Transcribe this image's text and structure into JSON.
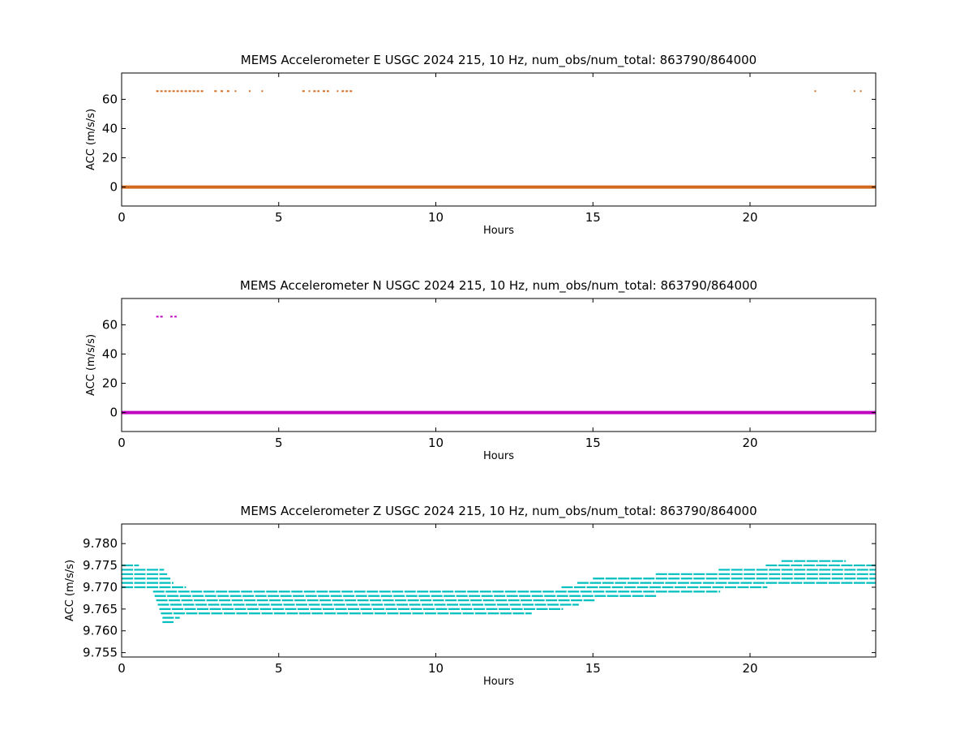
{
  "chart_data": [
    {
      "type": "scatter",
      "title": "MEMS Accelerometer E USGC 2024 215, 10 Hz, num_obs/num_total: 863790/864000",
      "xlabel": "Hours",
      "ylabel": "ACC (m/s/s)",
      "xlim": [
        0,
        24
      ],
      "ylim": [
        -13,
        78
      ],
      "xticks": [
        0,
        5,
        10,
        15,
        20
      ],
      "yticks": [
        0,
        20,
        40,
        60
      ],
      "grid": false,
      "color": "#d2691e",
      "series": [
        {
          "baseline": {
            "x": [
              0,
              24
            ],
            "y": 0
          },
          "spike_value": 65.6,
          "spike_segments": [
            [
              1.1,
              2.6
            ],
            [
              2.95,
              3.05
            ],
            [
              3.15,
              3.25
            ],
            [
              3.35,
              3.45
            ],
            [
              3.6,
              3.65
            ],
            [
              4.05,
              4.1
            ],
            [
              4.45,
              4.5
            ],
            [
              5.75,
              5.85
            ],
            [
              5.95,
              6.0
            ],
            [
              6.1,
              6.3
            ],
            [
              6.4,
              6.6
            ],
            [
              6.85,
              6.9
            ],
            [
              7.0,
              7.35
            ],
            [
              22.05,
              22.1
            ],
            [
              23.3,
              23.35
            ],
            [
              23.5,
              23.55
            ]
          ]
        }
      ]
    },
    {
      "type": "scatter",
      "title": "MEMS Accelerometer N USGC 2024 215, 10 Hz, num_obs/num_total: 863790/864000",
      "xlabel": "Hours",
      "ylabel": "ACC (m/s/s)",
      "xlim": [
        0,
        24
      ],
      "ylim": [
        -13,
        78
      ],
      "xticks": [
        0,
        5,
        10,
        15,
        20
      ],
      "yticks": [
        0,
        20,
        40,
        60
      ],
      "grid": false,
      "color": "#bf00bf",
      "series": [
        {
          "baseline": {
            "x": [
              0,
              24
            ],
            "y": 0
          },
          "spike_value": 65.6,
          "spike_segments": [
            [
              1.1,
              1.35
            ],
            [
              1.55,
              1.62
            ],
            [
              1.68,
              1.75
            ]
          ]
        }
      ]
    },
    {
      "type": "scatter",
      "title": "MEMS Accelerometer Z USGC 2024 215, 10 Hz, num_obs/num_total: 863790/864000",
      "xlabel": "Hours",
      "ylabel": "ACC (m/s/s)",
      "xlim": [
        0,
        24
      ],
      "ylim": [
        9.754,
        9.7845
      ],
      "xticks": [
        0,
        5,
        10,
        15,
        20
      ],
      "yticks": [
        9.755,
        9.76,
        9.765,
        9.77,
        9.775,
        9.78
      ],
      "ytick_labels": [
        "9.755",
        "9.760",
        "9.765",
        "9.770",
        "9.775",
        "9.780"
      ],
      "grid": false,
      "color": "#00bfbf",
      "series": [
        {
          "x": [
            0,
            0.5,
            1.0,
            1.3,
            1.6,
            2.0,
            3.0,
            5.0,
            8.0,
            10.0,
            11.0,
            12.0,
            13.0,
            14.0,
            15.0,
            16.0,
            17.0,
            18.0,
            19.0,
            20.0,
            20.5,
            21.0,
            22.0,
            23.0,
            24.0
          ],
          "low": [
            9.77,
            9.77,
            9.769,
            9.762,
            9.762,
            9.764,
            9.764,
            9.764,
            9.764,
            9.764,
            9.764,
            9.764,
            9.764,
            9.765,
            9.767,
            9.768,
            9.768,
            9.769,
            9.769,
            9.77,
            9.77,
            9.771,
            9.771,
            9.771,
            9.771
          ],
          "high": [
            9.775,
            9.775,
            9.774,
            9.774,
            9.771,
            9.77,
            9.769,
            9.769,
            9.769,
            9.769,
            9.769,
            9.769,
            9.769,
            9.77,
            9.772,
            9.772,
            9.773,
            9.773,
            9.774,
            9.774,
            9.775,
            9.776,
            9.776,
            9.776,
            9.775
          ]
        }
      ]
    }
  ]
}
